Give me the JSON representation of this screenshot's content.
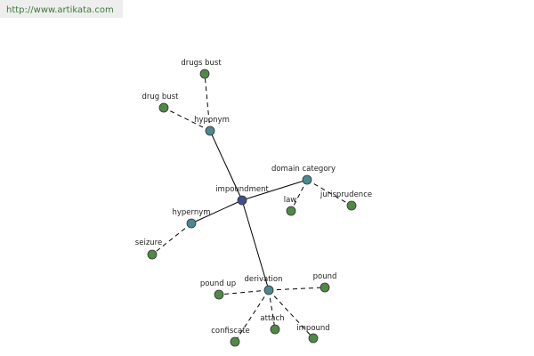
{
  "header": {
    "url": "http://www.artikata.com"
  },
  "nodes": [
    {
      "label": "impoundment"
    },
    {
      "label": "hyponym"
    },
    {
      "label": "drugs bust"
    },
    {
      "label": "drug bust"
    },
    {
      "label": "domain category"
    },
    {
      "label": "law"
    },
    {
      "label": "jurisprudence"
    },
    {
      "label": "hypernym"
    },
    {
      "label": "seizure"
    },
    {
      "label": "derivation"
    },
    {
      "label": "pound up"
    },
    {
      "label": "pound"
    },
    {
      "label": "confiscate"
    },
    {
      "label": "attach"
    },
    {
      "label": "impound"
    }
  ]
}
